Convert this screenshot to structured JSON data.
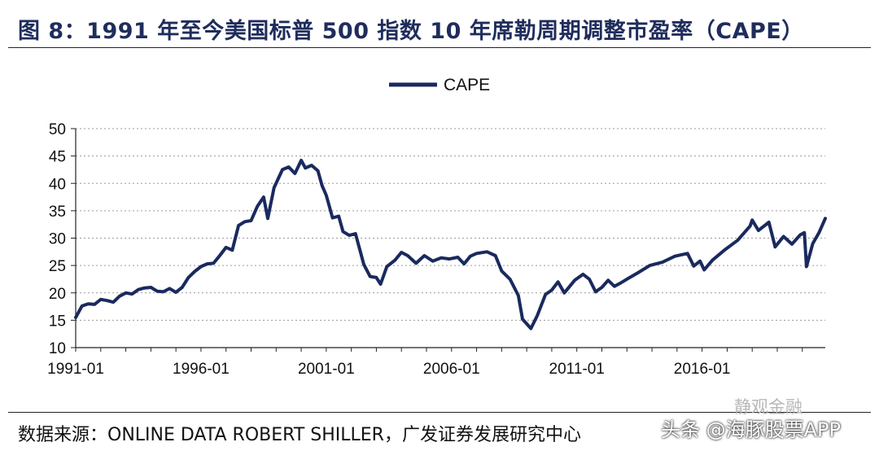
{
  "header": {
    "title": "图 8：1991 年至今美国标普 500 指数 10 年席勒周期调整市盈率（CAPE）"
  },
  "footer": {
    "source": "数据来源：ONLINE DATA ROBERT SHILLER，广发证券发展研究中心",
    "watermark_top": "静观金融",
    "watermark_bottom": "头条 @海豚股票APP"
  },
  "colors": {
    "series": "#1a2a5e",
    "grid": "#9a9a9a"
  },
  "chart_data": {
    "type": "line",
    "title": "",
    "xlabel": "",
    "ylabel": "",
    "ylim": [
      10,
      50
    ],
    "yticks": [
      10,
      15,
      20,
      25,
      30,
      35,
      40,
      45,
      50
    ],
    "xlim": [
      "1991-01",
      "2020-12"
    ],
    "xticks": [
      "1991-01",
      "1996-01",
      "2001-01",
      "2006-01",
      "2011-01",
      "2016-01"
    ],
    "grid": "horizontal-dotted",
    "legend": "top-center",
    "series": [
      {
        "name": "CAPE",
        "points": [
          [
            "1991-01",
            15.5
          ],
          [
            "1991-04",
            17.6
          ],
          [
            "1991-07",
            18.0
          ],
          [
            "1991-10",
            17.9
          ],
          [
            "1992-01",
            18.8
          ],
          [
            "1992-04",
            18.6
          ],
          [
            "1992-07",
            18.3
          ],
          [
            "1992-10",
            19.4
          ],
          [
            "1993-01",
            20.0
          ],
          [
            "1993-04",
            19.8
          ],
          [
            "1993-07",
            20.6
          ],
          [
            "1993-10",
            20.9
          ],
          [
            "1994-01",
            21.0
          ],
          [
            "1994-04",
            20.3
          ],
          [
            "1994-07",
            20.2
          ],
          [
            "1994-10",
            20.8
          ],
          [
            "1995-01",
            20.1
          ],
          [
            "1995-04",
            21.0
          ],
          [
            "1995-07",
            22.8
          ],
          [
            "1995-10",
            23.9
          ],
          [
            "1996-01",
            24.8
          ],
          [
            "1996-04",
            25.3
          ],
          [
            "1996-07",
            25.4
          ],
          [
            "1996-10",
            26.8
          ],
          [
            "1997-01",
            28.3
          ],
          [
            "1997-04",
            27.8
          ],
          [
            "1997-07",
            32.3
          ],
          [
            "1997-10",
            33.0
          ],
          [
            "1998-01",
            33.2
          ],
          [
            "1998-04",
            35.8
          ],
          [
            "1998-07",
            37.5
          ],
          [
            "1998-09",
            33.6
          ],
          [
            "1998-12",
            39.2
          ],
          [
            "1999-04",
            42.5
          ],
          [
            "1999-07",
            43.0
          ],
          [
            "1999-10",
            41.8
          ],
          [
            "2000-01",
            44.2
          ],
          [
            "2000-03",
            42.8
          ],
          [
            "2000-06",
            43.3
          ],
          [
            "2000-09",
            42.3
          ],
          [
            "2000-11",
            39.6
          ],
          [
            "2001-01",
            37.8
          ],
          [
            "2001-04",
            33.7
          ],
          [
            "2001-07",
            34.0
          ],
          [
            "2001-09",
            31.2
          ],
          [
            "2001-12",
            30.5
          ],
          [
            "2002-03",
            30.8
          ],
          [
            "2002-07",
            25.2
          ],
          [
            "2002-10",
            23.0
          ],
          [
            "2003-01",
            22.8
          ],
          [
            "2003-03",
            21.6
          ],
          [
            "2003-06",
            24.8
          ],
          [
            "2003-10",
            26.0
          ],
          [
            "2004-01",
            27.4
          ],
          [
            "2004-04",
            26.8
          ],
          [
            "2004-08",
            25.4
          ],
          [
            "2004-12",
            26.8
          ],
          [
            "2005-04",
            25.8
          ],
          [
            "2005-08",
            26.4
          ],
          [
            "2005-12",
            26.2
          ],
          [
            "2006-04",
            26.5
          ],
          [
            "2006-07",
            25.3
          ],
          [
            "2006-10",
            26.7
          ],
          [
            "2007-01",
            27.2
          ],
          [
            "2007-06",
            27.5
          ],
          [
            "2007-10",
            26.8
          ],
          [
            "2008-01",
            24.0
          ],
          [
            "2008-05",
            22.5
          ],
          [
            "2008-09",
            19.5
          ],
          [
            "2008-11",
            15.2
          ],
          [
            "2009-03",
            13.5
          ],
          [
            "2009-06",
            15.8
          ],
          [
            "2009-10",
            19.7
          ],
          [
            "2010-01",
            20.5
          ],
          [
            "2010-04",
            22.0
          ],
          [
            "2010-07",
            20.0
          ],
          [
            "2010-12",
            22.3
          ],
          [
            "2011-04",
            23.4
          ],
          [
            "2011-07",
            22.5
          ],
          [
            "2011-10",
            20.2
          ],
          [
            "2012-01",
            21.0
          ],
          [
            "2012-04",
            22.3
          ],
          [
            "2012-07",
            21.2
          ],
          [
            "2012-10",
            21.8
          ],
          [
            "2013-01",
            22.5
          ],
          [
            "2013-06",
            23.6
          ],
          [
            "2013-12",
            25.0
          ],
          [
            "2014-06",
            25.6
          ],
          [
            "2014-12",
            26.7
          ],
          [
            "2015-06",
            27.2
          ],
          [
            "2015-09",
            24.9
          ],
          [
            "2015-12",
            25.8
          ],
          [
            "2016-02",
            24.2
          ],
          [
            "2016-06",
            26.0
          ],
          [
            "2016-12",
            27.9
          ],
          [
            "2017-06",
            29.6
          ],
          [
            "2017-12",
            32.2
          ],
          [
            "2018-01",
            33.3
          ],
          [
            "2018-04",
            31.4
          ],
          [
            "2018-09",
            32.9
          ],
          [
            "2018-12",
            28.4
          ],
          [
            "2019-04",
            30.3
          ],
          [
            "2019-08",
            28.9
          ],
          [
            "2019-12",
            30.6
          ],
          [
            "2020-02",
            31.0
          ],
          [
            "2020-03",
            24.8
          ],
          [
            "2020-06",
            29.0
          ],
          [
            "2020-09",
            31.0
          ],
          [
            "2020-12",
            33.6
          ]
        ]
      }
    ]
  }
}
